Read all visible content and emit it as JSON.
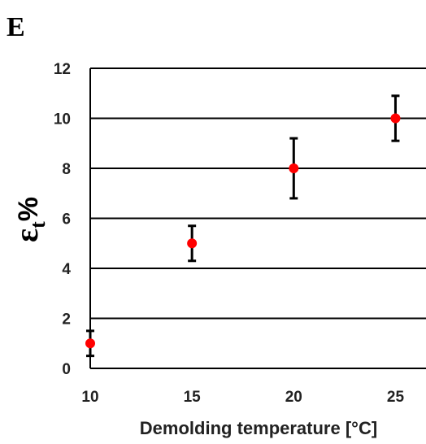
{
  "panel_label": "E",
  "chart_data": {
    "type": "scatter",
    "title": "",
    "xlabel": "Demolding temperature [°C]",
    "ylabel": {
      "symbol": "ε",
      "subscript": "t",
      "suffix": "%"
    },
    "x_ticks": [
      10,
      15,
      20,
      25
    ],
    "y_ticks": [
      0,
      2,
      4,
      6,
      8,
      10,
      12
    ],
    "xlim": [
      10,
      26.5
    ],
    "ylim": [
      0,
      12
    ],
    "grid": "horizontal",
    "points": [
      {
        "x": 10,
        "y": 1.0,
        "err_low": 0.5,
        "err_high": 1.5
      },
      {
        "x": 15,
        "y": 5.0,
        "err_low": 4.3,
        "err_high": 5.7
      },
      {
        "x": 20,
        "y": 8.0,
        "err_low": 6.8,
        "err_high": 9.2
      },
      {
        "x": 25,
        "y": 10.0,
        "err_low": 9.1,
        "err_high": 10.9
      }
    ],
    "colors": {
      "marker": "#ff0000",
      "error_bar": "#000000",
      "grid": "#000000"
    }
  }
}
